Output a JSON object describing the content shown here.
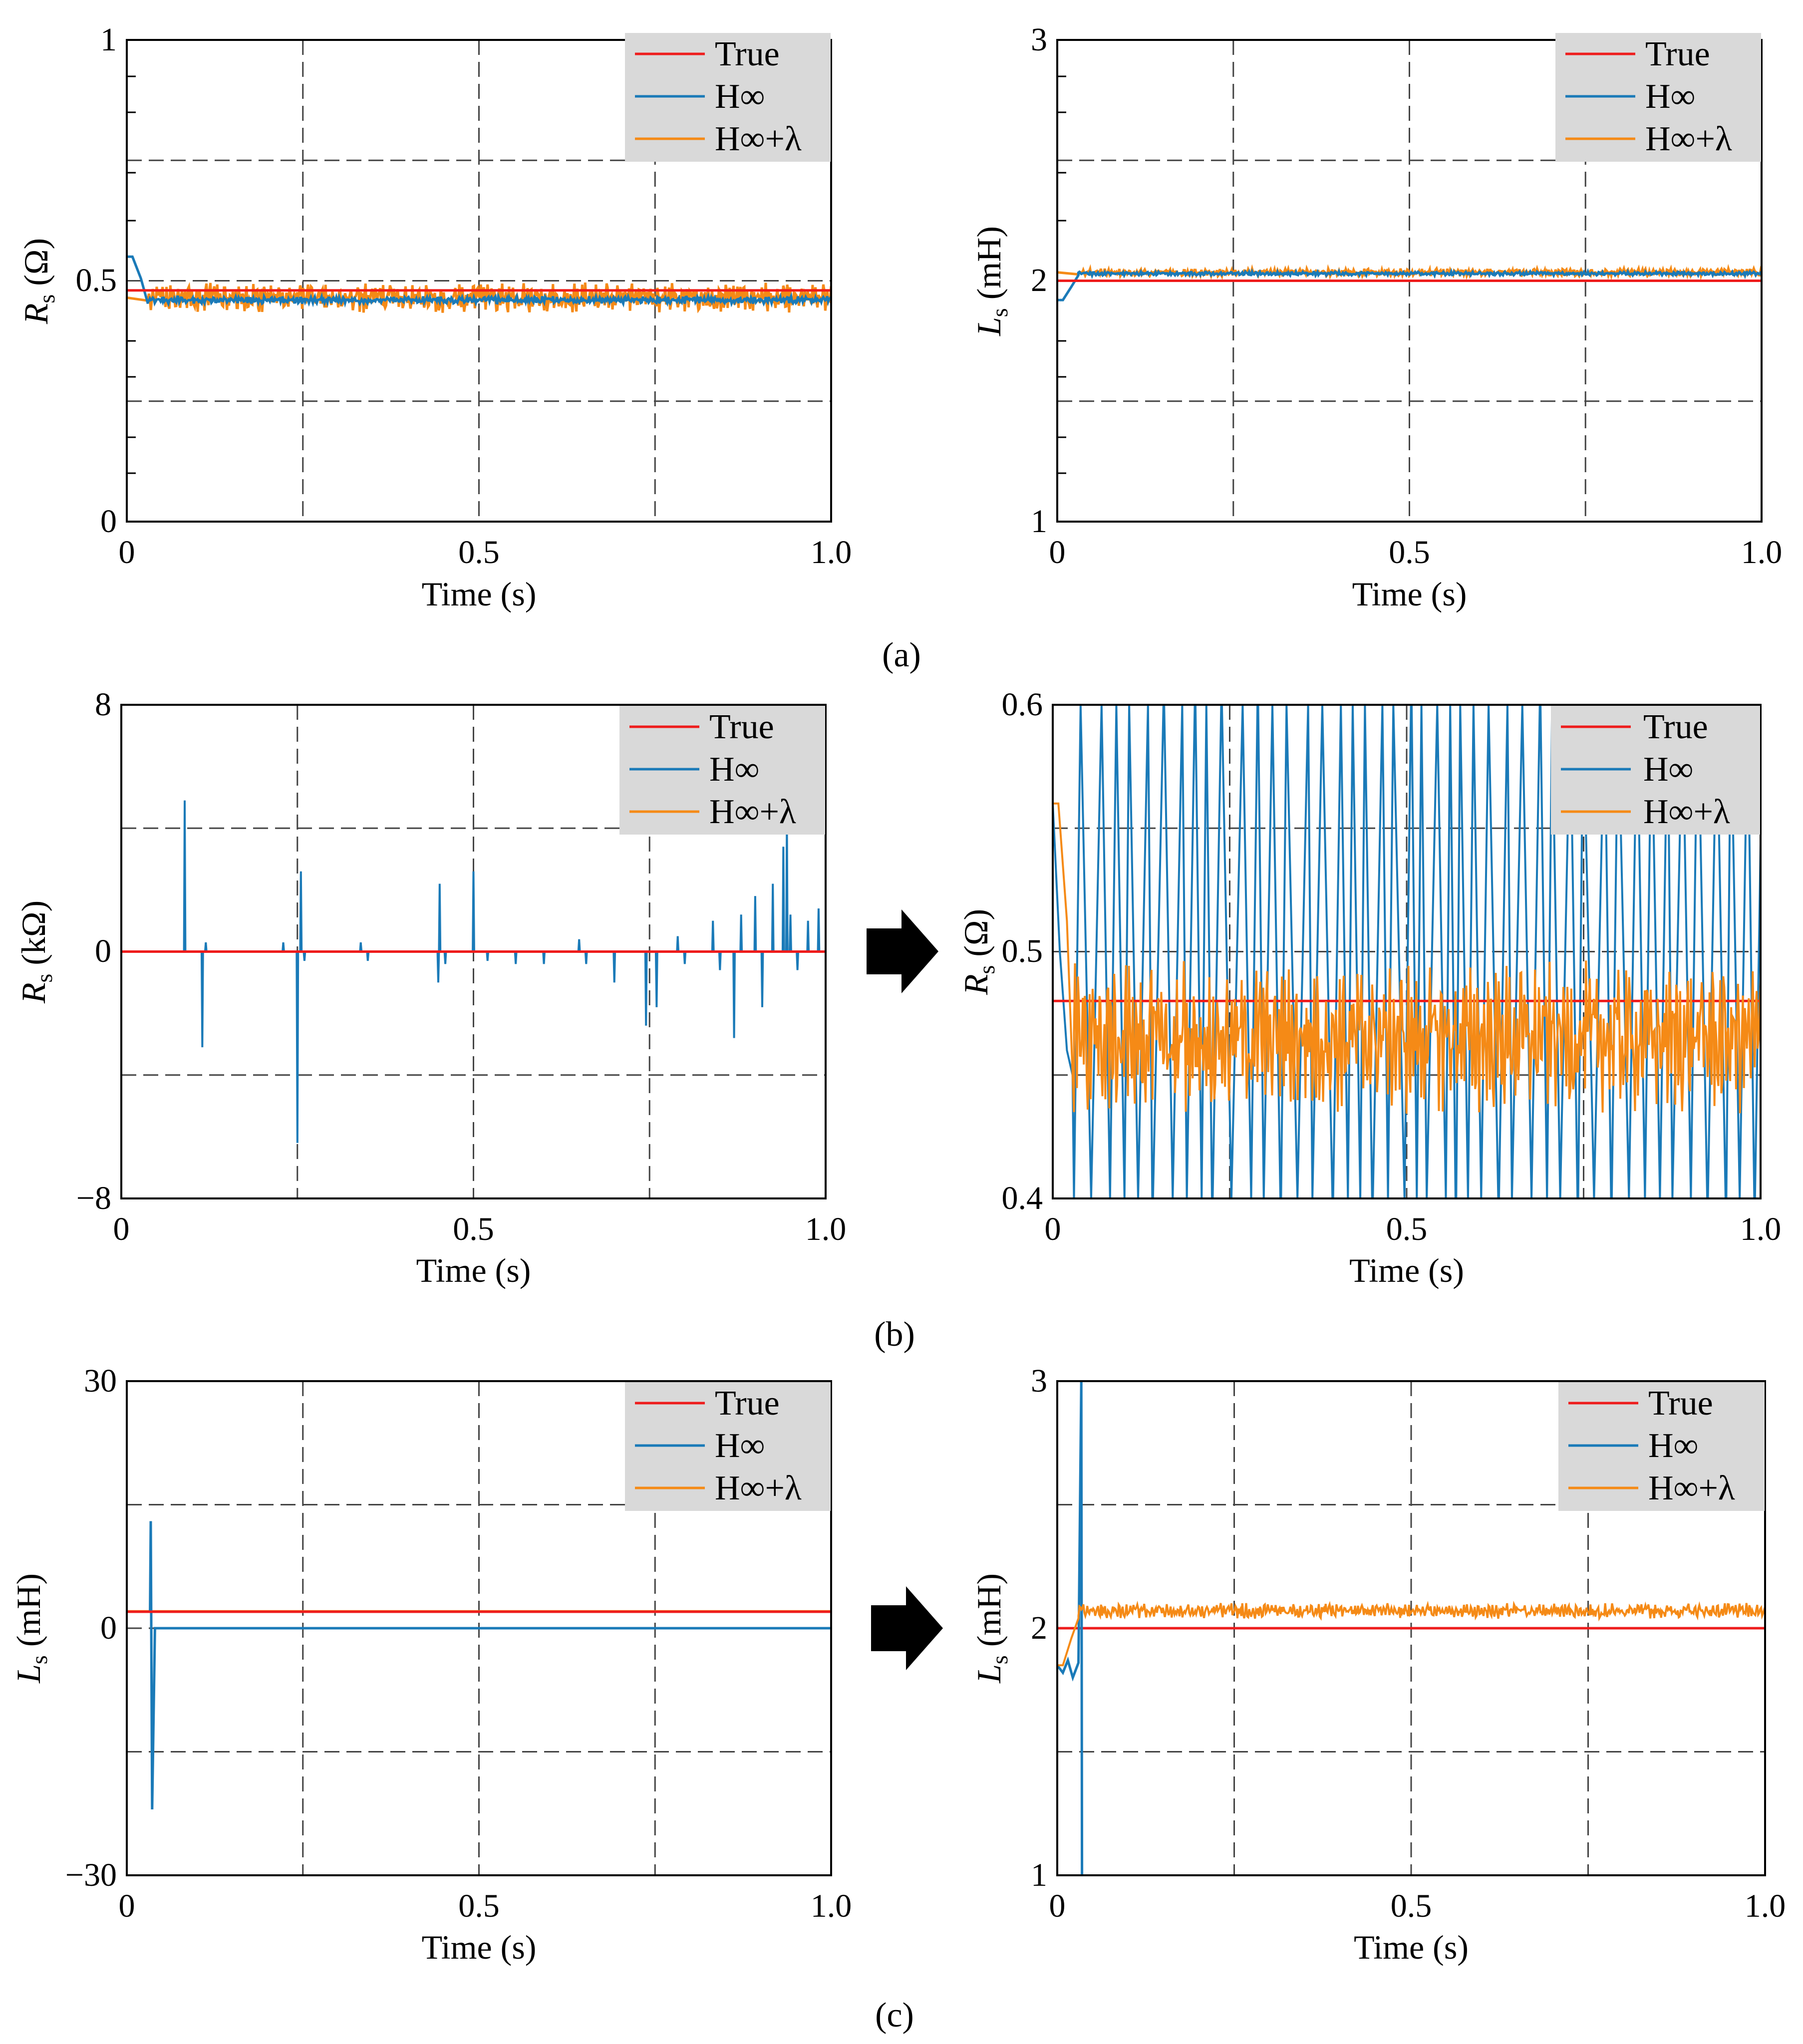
{
  "colors": {
    "true": "#ee1c1c",
    "hinf": "#1a7ab8",
    "hinf_lambda": "#f58a16",
    "legend_bg": "#d9d9d9",
    "grid": "#444444"
  },
  "captions": [
    "(a)",
    "(b)",
    "(c)"
  ],
  "legend_labels": [
    "True",
    "H∞",
    "H∞+λ"
  ],
  "arrow_icon": "arrow-right-icon",
  "chart_data": [
    {
      "id": "a-left",
      "type": "line",
      "xlabel": "Time (s)",
      "ylabel_main": "R",
      "ylabel_sub": "s",
      "ylabel_unit": "(Ω)",
      "xlim": [
        0,
        1
      ],
      "ylim": [
        0,
        1
      ],
      "xticks": [
        0,
        0.5,
        1.0
      ],
      "xtick_labels": [
        "0",
        "0.5",
        "1.0"
      ],
      "yticks": [
        0,
        0.5,
        1
      ],
      "ytick_labels": [
        "0",
        "0.5",
        "1"
      ],
      "gridx": [
        0.25,
        0.5,
        0.75
      ],
      "gridy": [
        0.25,
        0.5,
        0.75
      ],
      "series": [
        {
          "name": "True",
          "value": 0.48
        },
        {
          "name": "H∞",
          "initial": 0.55,
          "steady": 0.46,
          "osc": 0.005
        },
        {
          "name": "H∞+λ",
          "steady": 0.465,
          "osc": 0.02
        }
      ]
    },
    {
      "id": "a-right",
      "type": "line",
      "xlabel": "Time (s)",
      "ylabel_main": "L",
      "ylabel_sub": "s",
      "ylabel_unit": "(mH)",
      "xlim": [
        0,
        1
      ],
      "ylim": [
        1,
        3
      ],
      "xticks": [
        0,
        0.5,
        1.0
      ],
      "xtick_labels": [
        "0",
        "0.5",
        "1.0"
      ],
      "yticks": [
        1,
        2,
        3
      ],
      "ytick_labels": [
        "1",
        "2",
        "3"
      ],
      "gridx": [
        0.25,
        0.5,
        0.75
      ],
      "gridy": [
        1.5,
        2,
        2.5
      ],
      "series": [
        {
          "name": "True",
          "value": 2.0
        },
        {
          "name": "H∞",
          "initial": 1.92,
          "steady": 2.03,
          "osc": 0.005
        },
        {
          "name": "H∞+λ",
          "steady": 2.035,
          "osc": 0.01
        }
      ]
    },
    {
      "id": "b-left",
      "type": "line",
      "xlabel": "Time (s)",
      "ylabel_main": "R",
      "ylabel_sub": "s",
      "ylabel_unit": "(kΩ)",
      "xlim": [
        0,
        1
      ],
      "ylim": [
        -8,
        8
      ],
      "xticks": [
        0,
        0.5,
        1.0
      ],
      "xtick_labels": [
        "0",
        "0.5",
        "1.0"
      ],
      "yticks": [
        -8,
        0,
        8
      ],
      "ytick_labels": [
        "−8",
        "0",
        "8"
      ],
      "gridx": [
        0.25,
        0.5,
        0.75
      ],
      "gridy": [
        -4,
        0,
        4
      ],
      "series": [
        {
          "name": "True",
          "value": 0.0005
        },
        {
          "name": "H∞",
          "spikes": [
            [
              0.09,
              4.9
            ],
            [
              0.115,
              -3.1
            ],
            [
              0.12,
              0.3
            ],
            [
              0.23,
              0.3
            ],
            [
              0.25,
              -6.2
            ],
            [
              0.255,
              2.6
            ],
            [
              0.26,
              -0.3
            ],
            [
              0.34,
              0.3
            ],
            [
              0.35,
              -0.3
            ],
            [
              0.45,
              -1.0
            ],
            [
              0.452,
              2.2
            ],
            [
              0.46,
              -0.4
            ],
            [
              0.5,
              2.6
            ],
            [
              0.52,
              -0.3
            ],
            [
              0.56,
              -0.4
            ],
            [
              0.6,
              -0.4
            ],
            [
              0.65,
              0.4
            ],
            [
              0.66,
              -0.4
            ],
            [
              0.7,
              -1.0
            ],
            [
              0.745,
              -2.4
            ],
            [
              0.76,
              -1.8
            ],
            [
              0.79,
              0.5
            ],
            [
              0.8,
              -0.4
            ],
            [
              0.84,
              1.0
            ],
            [
              0.85,
              -0.6
            ],
            [
              0.87,
              -2.8
            ],
            [
              0.88,
              1.2
            ],
            [
              0.9,
              1.8
            ],
            [
              0.91,
              -1.8
            ],
            [
              0.925,
              2.2
            ],
            [
              0.94,
              3.4
            ],
            [
              0.945,
              4.2
            ],
            [
              0.95,
              1.2
            ],
            [
              0.96,
              -0.6
            ],
            [
              0.975,
              1.0
            ],
            [
              0.99,
              1.4
            ]
          ]
        },
        {
          "name": "H∞+λ",
          "steady": 0.0005
        }
      ]
    },
    {
      "id": "b-right",
      "type": "line",
      "xlabel": "Time (s)",
      "ylabel_main": "R",
      "ylabel_sub": "s",
      "ylabel_unit": "(Ω)",
      "xlim": [
        0,
        1
      ],
      "ylim": [
        0.4,
        0.6
      ],
      "xticks": [
        0,
        0.5,
        1.0
      ],
      "xtick_labels": [
        "0",
        "0.5",
        "1.0"
      ],
      "yticks": [
        0.4,
        0.5,
        0.6
      ],
      "ytick_labels": [
        "0.4",
        "0.5",
        "0.6"
      ],
      "gridx": [
        0.25,
        0.5,
        0.75
      ],
      "gridy": [
        0.45,
        0.5,
        0.55
      ],
      "series": [
        {
          "name": "True",
          "value": 0.48
        },
        {
          "name": "H∞",
          "initial": 0.56,
          "oscillating_between": [
            0.4,
            0.6
          ]
        },
        {
          "name": "H∞+λ",
          "initial": 0.56,
          "steady": 0.465,
          "osc": 0.02
        }
      ]
    },
    {
      "id": "c-left",
      "type": "line",
      "xlabel": "Time (s)",
      "ylabel_main": "L",
      "ylabel_sub": "s",
      "ylabel_unit": "(mH)",
      "xlim": [
        0,
        1
      ],
      "ylim": [
        -30,
        30
      ],
      "xticks": [
        0,
        0.5,
        1.0
      ],
      "xtick_labels": [
        "0",
        "0.5",
        "1.0"
      ],
      "yticks": [
        -30,
        0,
        30
      ],
      "ytick_labels": [
        "−30",
        "0",
        "30"
      ],
      "gridx": [
        0.25,
        0.5,
        0.75
      ],
      "gridy": [
        -15,
        0,
        15
      ],
      "series": [
        {
          "name": "True",
          "value": 2.0
        },
        {
          "name": "H∞",
          "spikes": [
            [
              0.034,
              13
            ],
            [
              0.036,
              -22
            ]
          ],
          "steady": 0.0
        },
        {
          "name": "H∞+λ",
          "steady": 2.05
        }
      ]
    },
    {
      "id": "c-right",
      "type": "line",
      "xlabel": "Time (s)",
      "ylabel_main": "L",
      "ylabel_sub": "s",
      "ylabel_unit": "(mH)",
      "xlim": [
        0,
        1
      ],
      "ylim": [
        1,
        3
      ],
      "xticks": [
        0,
        0.5,
        1.0
      ],
      "xtick_labels": [
        "0",
        "0.5",
        "1.0"
      ],
      "yticks": [
        1,
        2,
        3
      ],
      "ytick_labels": [
        "1",
        "2",
        "3"
      ],
      "gridx": [
        0.25,
        0.5,
        0.75
      ],
      "gridy": [
        1.5,
        2,
        2.5
      ],
      "series": [
        {
          "name": "True",
          "value": 2.0
        },
        {
          "name": "H∞",
          "initial": 1.85,
          "diverges_at": 0.034
        },
        {
          "name": "H∞+λ",
          "initial": 1.85,
          "steady": 2.07,
          "osc": 0.02
        }
      ]
    }
  ]
}
